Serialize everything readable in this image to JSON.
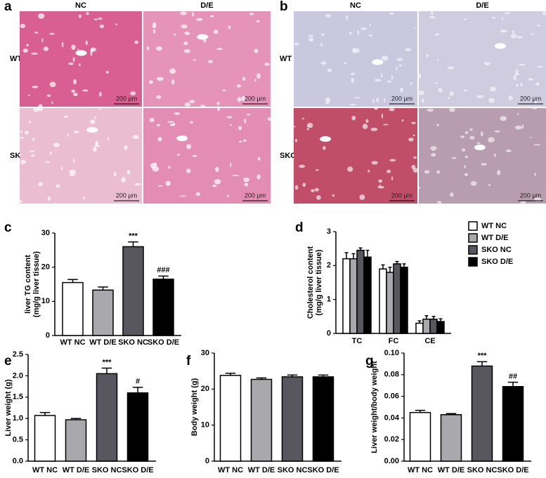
{
  "images": [
    {
      "label": "a",
      "columns": [
        "NC",
        "D/E"
      ],
      "rows": [
        "WT",
        "SKO"
      ],
      "scale": "200 μm"
    },
    {
      "label": "b",
      "columns": [
        "NC",
        "D/E"
      ],
      "rows": [
        "WT",
        "SKO"
      ],
      "scale": "200 μm"
    }
  ],
  "chart_data": [
    {
      "type": "bar",
      "panel_label": "c",
      "ylabel": [
        "liver TG content",
        "(mg/g liver tissue)"
      ],
      "categories": [
        "WT NC",
        "WT D/E",
        "SKO NC",
        "SKO D/E"
      ],
      "values": [
        15.5,
        13.3,
        26,
        16.5
      ],
      "errors": [
        0.9,
        0.9,
        1.4,
        0.9
      ],
      "colors": [
        "#ffffff",
        "#a9a9ad",
        "#58565e",
        "#000000"
      ],
      "annotations": [
        null,
        null,
        "***",
        "###"
      ],
      "ylim": [
        0,
        30
      ],
      "yticks": [
        0,
        10,
        20,
        30
      ]
    },
    {
      "type": "grouped_bar",
      "panel_label": "d",
      "ylabel": [
        "Cholesterol content",
        "(mg/g liver tissue)"
      ],
      "categories": [
        "TC",
        "FC",
        "CE"
      ],
      "series": [
        {
          "name": "WT NC",
          "color": "#ffffff",
          "values": [
            2.2,
            1.9,
            0.3
          ],
          "errors": [
            0.18,
            0.12,
            0.07
          ]
        },
        {
          "name": "WT D/E",
          "color": "#a9a9ad",
          "values": [
            2.2,
            1.8,
            0.42
          ],
          "errors": [
            0.15,
            0.15,
            0.1
          ]
        },
        {
          "name": "SKO NC",
          "color": "#58565e",
          "values": [
            2.45,
            2.05,
            0.42
          ],
          "errors": [
            0.07,
            0.07,
            0.08
          ]
        },
        {
          "name": "SKO D/E",
          "color": "#000000",
          "values": [
            2.25,
            1.95,
            0.35
          ],
          "errors": [
            0.2,
            0.1,
            0.08
          ]
        }
      ],
      "ylim": [
        0,
        3
      ],
      "yticks": [
        0,
        1,
        2,
        3
      ]
    },
    {
      "type": "bar",
      "panel_label": "e",
      "ylabel": [
        "Liver weight (g)"
      ],
      "categories": [
        "WT NC",
        "WT D/E",
        "SKO NC",
        "SKO D/E"
      ],
      "values": [
        1.07,
        0.97,
        2.05,
        1.6
      ],
      "errors": [
        0.07,
        0.03,
        0.13,
        0.13
      ],
      "colors": [
        "#ffffff",
        "#a9a9ad",
        "#58565e",
        "#000000"
      ],
      "annotations": [
        null,
        null,
        "***",
        "#"
      ],
      "ylim": [
        0,
        2.5
      ],
      "yticks": [
        {
          "value": 0,
          "label": "0.0"
        },
        {
          "value": 0.5,
          "label": "0.5"
        },
        {
          "value": 1,
          "label": "1.0"
        },
        {
          "value": 1.5,
          "label": "1.5"
        },
        {
          "value": 2,
          "label": "2.0"
        },
        {
          "value": 2.5,
          "label": "2.5"
        }
      ]
    },
    {
      "type": "bar",
      "panel_label": "f",
      "ylabel": [
        "Body weight (g)"
      ],
      "categories": [
        "WT NC",
        "WT D/E",
        "SKO NC",
        "SKO D/E"
      ],
      "values": [
        23.8,
        22.7,
        23.4,
        23.4
      ],
      "errors": [
        0.6,
        0.4,
        0.5,
        0.5
      ],
      "colors": [
        "#ffffff",
        "#a9a9ad",
        "#58565e",
        "#000000"
      ],
      "ylim": [
        0,
        30
      ],
      "yticks": [
        0,
        10,
        20,
        30
      ]
    },
    {
      "type": "bar",
      "panel_label": "g",
      "ylabel": [
        "Liver weight/body weight"
      ],
      "categories": [
        "WT NC",
        "WT D/E",
        "SKO NC",
        "SKO D/E"
      ],
      "values": [
        0.045,
        0.043,
        0.088,
        0.069
      ],
      "errors": [
        0.002,
        0.001,
        0.004,
        0.004
      ],
      "colors": [
        "#ffffff",
        "#a9a9ad",
        "#58565e",
        "#000000"
      ],
      "annotations": [
        null,
        null,
        "***",
        "##"
      ],
      "ylim": [
        0,
        0.1
      ],
      "yticks": [
        {
          "value": 0,
          "label": "0.00"
        },
        {
          "value": 0.02,
          "label": "0.02"
        },
        {
          "value": 0.04,
          "label": "0.04"
        },
        {
          "value": 0.06,
          "label": "0.06"
        },
        {
          "value": 0.08,
          "label": "0.08"
        },
        {
          "value": 0.1,
          "label": "0.10"
        }
      ]
    }
  ]
}
